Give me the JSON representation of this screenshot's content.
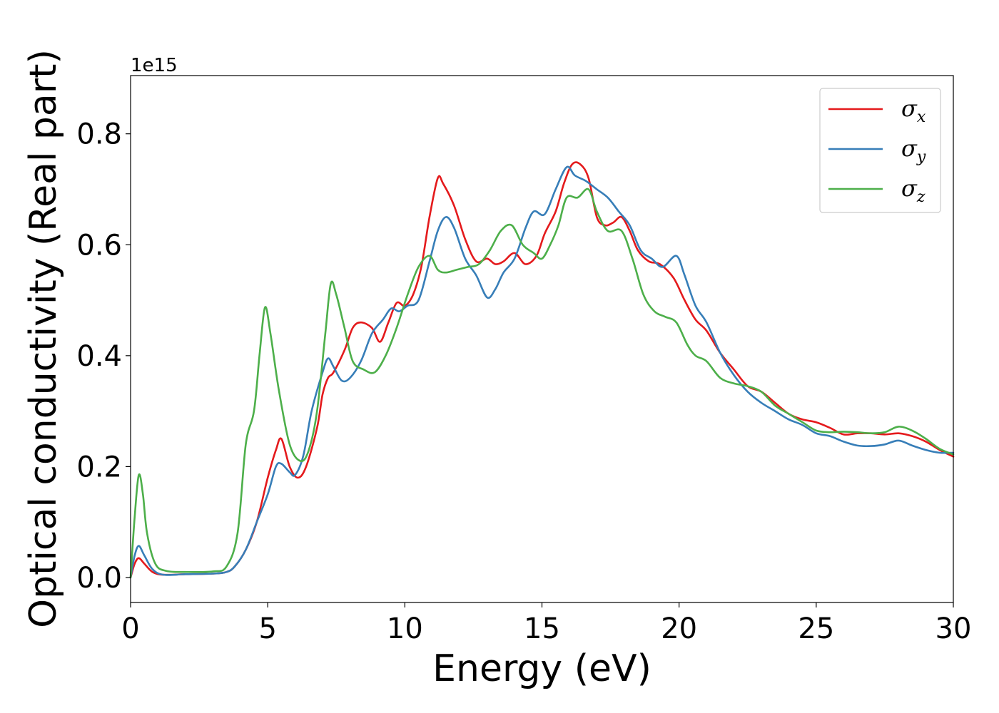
{
  "chart_data": {
    "type": "line",
    "xlabel": "Energy (eV)",
    "ylabel": "Optical conductivity (Real part)",
    "y_offset_text": "1e15",
    "xlim": [
      0,
      30
    ],
    "ylim": [
      -0.045,
      0.905
    ],
    "x_ticks": [
      0,
      5,
      10,
      15,
      20,
      25,
      30
    ],
    "x_tick_labels": [
      "0",
      "5",
      "10",
      "15",
      "20",
      "25",
      "30"
    ],
    "y_ticks": [
      0.0,
      0.2,
      0.4,
      0.6,
      0.8
    ],
    "y_tick_labels": [
      "0.0",
      "0.2",
      "0.4",
      "0.6",
      "0.8"
    ],
    "grid": false,
    "legend_position": "top-right",
    "colors": {
      "sigma_x": "#e41a1c",
      "sigma_y": "#377eb8",
      "sigma_z": "#4daf4a"
    },
    "series": [
      {
        "name": "σx",
        "base": "σ",
        "sub": "x",
        "color": "#e41a1c",
        "points": [
          [
            0,
            0
          ],
          [
            0.15,
            0.025
          ],
          [
            0.3,
            0.035
          ],
          [
            0.5,
            0.025
          ],
          [
            0.8,
            0.01
          ],
          [
            1.2,
            0.005
          ],
          [
            2,
            0.006
          ],
          [
            3,
            0.007
          ],
          [
            3.5,
            0.01
          ],
          [
            3.8,
            0.02
          ],
          [
            4.2,
            0.05
          ],
          [
            4.6,
            0.1
          ],
          [
            5.0,
            0.18
          ],
          [
            5.3,
            0.23
          ],
          [
            5.5,
            0.25
          ],
          [
            5.8,
            0.2
          ],
          [
            6.1,
            0.18
          ],
          [
            6.4,
            0.2
          ],
          [
            6.8,
            0.27
          ],
          [
            7.0,
            0.33
          ],
          [
            7.2,
            0.36
          ],
          [
            7.4,
            0.37
          ],
          [
            7.8,
            0.41
          ],
          [
            8.1,
            0.45
          ],
          [
            8.4,
            0.46
          ],
          [
            8.8,
            0.45
          ],
          [
            9.1,
            0.425
          ],
          [
            9.4,
            0.46
          ],
          [
            9.7,
            0.495
          ],
          [
            10.0,
            0.49
          ],
          [
            10.3,
            0.51
          ],
          [
            10.6,
            0.56
          ],
          [
            10.9,
            0.65
          ],
          [
            11.2,
            0.72
          ],
          [
            11.4,
            0.71
          ],
          [
            11.8,
            0.67
          ],
          [
            12.2,
            0.61
          ],
          [
            12.6,
            0.57
          ],
          [
            13.0,
            0.575
          ],
          [
            13.3,
            0.565
          ],
          [
            13.6,
            0.57
          ],
          [
            14.0,
            0.585
          ],
          [
            14.4,
            0.565
          ],
          [
            14.8,
            0.58
          ],
          [
            15.1,
            0.62
          ],
          [
            15.5,
            0.66
          ],
          [
            15.8,
            0.71
          ],
          [
            16.1,
            0.745
          ],
          [
            16.4,
            0.745
          ],
          [
            16.7,
            0.72
          ],
          [
            17.0,
            0.65
          ],
          [
            17.3,
            0.635
          ],
          [
            17.6,
            0.64
          ],
          [
            17.9,
            0.65
          ],
          [
            18.2,
            0.625
          ],
          [
            18.5,
            0.59
          ],
          [
            18.9,
            0.57
          ],
          [
            19.3,
            0.565
          ],
          [
            19.8,
            0.54
          ],
          [
            20.2,
            0.5
          ],
          [
            20.6,
            0.465
          ],
          [
            21.0,
            0.445
          ],
          [
            21.5,
            0.405
          ],
          [
            22.0,
            0.375
          ],
          [
            22.5,
            0.345
          ],
          [
            23.0,
            0.335
          ],
          [
            23.5,
            0.315
          ],
          [
            24.0,
            0.295
          ],
          [
            24.5,
            0.285
          ],
          [
            25.0,
            0.28
          ],
          [
            25.5,
            0.27
          ],
          [
            26.0,
            0.258
          ],
          [
            26.5,
            0.26
          ],
          [
            27.0,
            0.26
          ],
          [
            27.5,
            0.258
          ],
          [
            28.0,
            0.26
          ],
          [
            28.5,
            0.255
          ],
          [
            29.0,
            0.245
          ],
          [
            29.5,
            0.23
          ],
          [
            30.0,
            0.218
          ]
        ]
      },
      {
        "name": "σy",
        "base": "σ",
        "sub": "y",
        "color": "#377eb8",
        "points": [
          [
            0,
            0
          ],
          [
            0.15,
            0.04
          ],
          [
            0.3,
            0.057
          ],
          [
            0.5,
            0.04
          ],
          [
            0.8,
            0.015
          ],
          [
            1.2,
            0.005
          ],
          [
            2,
            0.006
          ],
          [
            3,
            0.007
          ],
          [
            3.5,
            0.01
          ],
          [
            3.8,
            0.02
          ],
          [
            4.2,
            0.05
          ],
          [
            4.6,
            0.1
          ],
          [
            5.0,
            0.15
          ],
          [
            5.3,
            0.2
          ],
          [
            5.5,
            0.205
          ],
          [
            5.8,
            0.19
          ],
          [
            6.0,
            0.185
          ],
          [
            6.3,
            0.22
          ],
          [
            6.6,
            0.3
          ],
          [
            7.0,
            0.37
          ],
          [
            7.2,
            0.395
          ],
          [
            7.4,
            0.38
          ],
          [
            7.7,
            0.355
          ],
          [
            8.0,
            0.36
          ],
          [
            8.4,
            0.39
          ],
          [
            8.8,
            0.44
          ],
          [
            9.2,
            0.465
          ],
          [
            9.5,
            0.485
          ],
          [
            9.8,
            0.48
          ],
          [
            10.1,
            0.49
          ],
          [
            10.5,
            0.5
          ],
          [
            10.9,
            0.57
          ],
          [
            11.2,
            0.625
          ],
          [
            11.5,
            0.65
          ],
          [
            11.8,
            0.63
          ],
          [
            12.2,
            0.575
          ],
          [
            12.6,
            0.545
          ],
          [
            13.0,
            0.505
          ],
          [
            13.3,
            0.52
          ],
          [
            13.6,
            0.55
          ],
          [
            14.0,
            0.575
          ],
          [
            14.4,
            0.63
          ],
          [
            14.7,
            0.66
          ],
          [
            15.1,
            0.655
          ],
          [
            15.5,
            0.7
          ],
          [
            15.9,
            0.74
          ],
          [
            16.2,
            0.725
          ],
          [
            16.6,
            0.715
          ],
          [
            17.0,
            0.7
          ],
          [
            17.4,
            0.685
          ],
          [
            17.8,
            0.66
          ],
          [
            18.2,
            0.635
          ],
          [
            18.6,
            0.59
          ],
          [
            19.0,
            0.575
          ],
          [
            19.4,
            0.56
          ],
          [
            19.9,
            0.58
          ],
          [
            20.2,
            0.545
          ],
          [
            20.6,
            0.49
          ],
          [
            21.0,
            0.46
          ],
          [
            21.5,
            0.405
          ],
          [
            22.0,
            0.365
          ],
          [
            22.5,
            0.335
          ],
          [
            23.0,
            0.315
          ],
          [
            23.5,
            0.3
          ],
          [
            24.0,
            0.285
          ],
          [
            24.5,
            0.275
          ],
          [
            25.0,
            0.26
          ],
          [
            25.5,
            0.255
          ],
          [
            26.0,
            0.245
          ],
          [
            26.5,
            0.238
          ],
          [
            27.0,
            0.237
          ],
          [
            27.5,
            0.24
          ],
          [
            28.0,
            0.247
          ],
          [
            28.5,
            0.238
          ],
          [
            29.0,
            0.23
          ],
          [
            29.5,
            0.225
          ],
          [
            30.0,
            0.225
          ]
        ]
      },
      {
        "name": "σz",
        "base": "σ",
        "sub": "z",
        "color": "#4daf4a",
        "points": [
          [
            0,
            0
          ],
          [
            0.15,
            0.11
          ],
          [
            0.3,
            0.185
          ],
          [
            0.45,
            0.15
          ],
          [
            0.6,
            0.08
          ],
          [
            0.9,
            0.025
          ],
          [
            1.3,
            0.012
          ],
          [
            2,
            0.01
          ],
          [
            3,
            0.011
          ],
          [
            3.5,
            0.02
          ],
          [
            3.9,
            0.08
          ],
          [
            4.2,
            0.24
          ],
          [
            4.5,
            0.3
          ],
          [
            4.7,
            0.4
          ],
          [
            4.9,
            0.487
          ],
          [
            5.1,
            0.44
          ],
          [
            5.4,
            0.34
          ],
          [
            5.8,
            0.24
          ],
          [
            6.2,
            0.21
          ],
          [
            6.5,
            0.23
          ],
          [
            6.8,
            0.3
          ],
          [
            7.1,
            0.44
          ],
          [
            7.3,
            0.53
          ],
          [
            7.5,
            0.51
          ],
          [
            7.8,
            0.45
          ],
          [
            8.1,
            0.39
          ],
          [
            8.5,
            0.375
          ],
          [
            8.9,
            0.37
          ],
          [
            9.3,
            0.4
          ],
          [
            9.7,
            0.45
          ],
          [
            10.1,
            0.51
          ],
          [
            10.5,
            0.56
          ],
          [
            10.9,
            0.58
          ],
          [
            11.2,
            0.555
          ],
          [
            11.5,
            0.55
          ],
          [
            11.9,
            0.555
          ],
          [
            12.3,
            0.56
          ],
          [
            12.7,
            0.565
          ],
          [
            13.1,
            0.59
          ],
          [
            13.5,
            0.625
          ],
          [
            13.9,
            0.635
          ],
          [
            14.3,
            0.6
          ],
          [
            14.7,
            0.585
          ],
          [
            15.0,
            0.575
          ],
          [
            15.3,
            0.6
          ],
          [
            15.6,
            0.635
          ],
          [
            15.9,
            0.685
          ],
          [
            16.3,
            0.685
          ],
          [
            16.7,
            0.7
          ],
          [
            17.0,
            0.66
          ],
          [
            17.4,
            0.625
          ],
          [
            17.9,
            0.625
          ],
          [
            18.3,
            0.575
          ],
          [
            18.7,
            0.51
          ],
          [
            19.1,
            0.48
          ],
          [
            19.5,
            0.47
          ],
          [
            19.9,
            0.46
          ],
          [
            20.3,
            0.42
          ],
          [
            20.6,
            0.4
          ],
          [
            21.0,
            0.39
          ],
          [
            21.5,
            0.36
          ],
          [
            22.0,
            0.35
          ],
          [
            22.5,
            0.345
          ],
          [
            23.0,
            0.335
          ],
          [
            23.5,
            0.31
          ],
          [
            24.0,
            0.295
          ],
          [
            24.5,
            0.28
          ],
          [
            25.0,
            0.265
          ],
          [
            25.5,
            0.262
          ],
          [
            26.0,
            0.263
          ],
          [
            26.5,
            0.262
          ],
          [
            27.0,
            0.26
          ],
          [
            27.5,
            0.262
          ],
          [
            28.0,
            0.272
          ],
          [
            28.5,
            0.265
          ],
          [
            29.0,
            0.25
          ],
          [
            29.5,
            0.232
          ],
          [
            30.0,
            0.222
          ]
        ]
      }
    ]
  }
}
